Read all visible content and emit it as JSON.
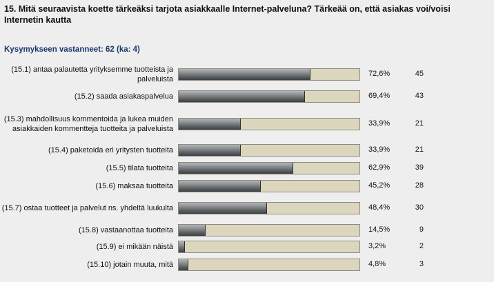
{
  "question": "15. Mitä seuraavista koette tärkeäksi tarjota asiakkaalle Internet-palveluna? Tärkeää on, että asiakas voi/voisi Internetin kautta",
  "respondents": "Kysymykseen vastanneet: 62 (ka: 4)",
  "chart_data": {
    "type": "bar",
    "orientation": "horizontal",
    "title": "15. Mitä seuraavista koette tärkeäksi tarjota asiakkaalle Internet-palveluna? Tärkeää on, että asiakas voi/voisi Internetin kautta",
    "xlim": [
      0,
      100
    ],
    "categories": [
      "(15.1) antaa palautetta yrityksemme tuotteista ja palveluista",
      "(15.2) saada asiakaspalvelua",
      "(15.3) mahdollisuus kommentoida ja lukea muiden asiakkaiden kommentteja tuotteita ja palveluista",
      "(15.4) paketoida eri yritysten tuotteita",
      "(15.5) tilata tuotteita",
      "(15.6) maksaa tuotteita",
      "(15.7) ostaa tuotteet ja palvelut ns. yhdeltä luukulta",
      "(15.8) vastaanottaa tuotteita",
      "(15.9) ei mikään näistä",
      "(15.10) jotain muuta, mitä"
    ],
    "values": [
      72.6,
      69.4,
      33.9,
      33.9,
      62.9,
      45.2,
      48.4,
      14.5,
      3.2,
      4.8
    ],
    "value_labels": [
      "72,6%",
      "69,4%",
      "33,9%",
      "33,9%",
      "62,9%",
      "45,2%",
      "48,4%",
      "14,5%",
      "3,2%",
      "4,8%"
    ],
    "counts": [
      "45",
      "43",
      "21",
      "21",
      "39",
      "28",
      "30",
      "9",
      "2",
      "3"
    ]
  },
  "colors": {
    "fill": "#5d6164",
    "track": "#ddd6bf",
    "respondents_text": "#1a3a6b",
    "background": "#eeeeee"
  }
}
